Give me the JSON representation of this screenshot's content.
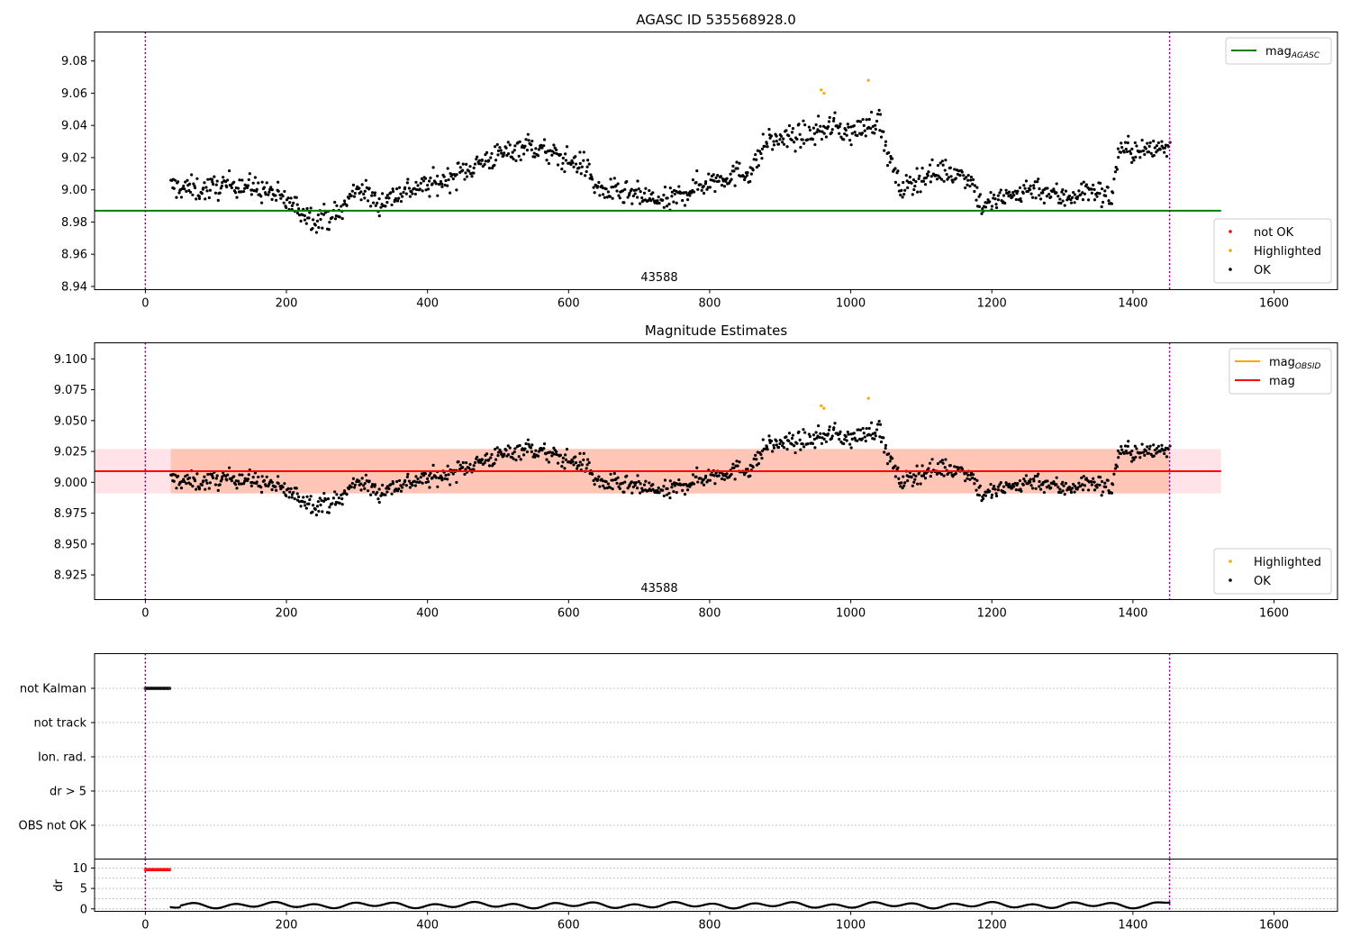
{
  "figure": {
    "background": "#ffffff"
  },
  "chart_data": [
    {
      "name": "panel-agasc",
      "type": "scatter",
      "title": "AGASC ID 535568928.0",
      "annotation": "43588",
      "xlim": [
        -72,
        1690
      ],
      "ylim": [
        8.938,
        9.098
      ],
      "xticks": [
        0,
        200,
        400,
        600,
        800,
        1000,
        1200,
        1400,
        1600
      ],
      "yticks": [
        8.94,
        8.96,
        8.98,
        9.0,
        9.02,
        9.04,
        9.06,
        9.08
      ],
      "vlines": [
        0,
        1452
      ],
      "hlines": [
        {
          "y": 8.987,
          "x0": -72,
          "x1": 1525,
          "color": "#008000",
          "label": "mag_AGASC"
        }
      ],
      "legends": [
        {
          "position": "top-right",
          "entries": [
            {
              "label": "mag",
              "sub": "AGASC",
              "kind": "line",
              "color": "#008000"
            }
          ]
        },
        {
          "position": "bottom-right",
          "entries": [
            {
              "label": "not OK",
              "kind": "dot",
              "color": "#ff0000"
            },
            {
              "label": "Highlighted",
              "kind": "dot",
              "color": "#ffa500"
            },
            {
              "label": "OK",
              "kind": "dot",
              "color": "#000000"
            }
          ]
        }
      ],
      "highlighted": [
        [
          958,
          9.062
        ],
        [
          962,
          9.06
        ],
        [
          1025,
          9.068
        ]
      ],
      "generated_ok_points": 1100
    },
    {
      "name": "panel-magnitude",
      "type": "scatter",
      "title": "Magnitude Estimates",
      "annotation": "43588",
      "xlim": [
        -72,
        1690
      ],
      "ylim": [
        8.905,
        9.113
      ],
      "xticks": [
        0,
        200,
        400,
        600,
        800,
        1000,
        1200,
        1400,
        1600
      ],
      "yticks": [
        8.925,
        8.95,
        8.975,
        9.0,
        9.025,
        9.05,
        9.075,
        9.1
      ],
      "ytick_labels": [
        "8.925",
        "8.950",
        "8.975",
        "9.000",
        "9.025",
        "9.050",
        "9.075",
        "9.100"
      ],
      "vlines": [
        0,
        1452
      ],
      "bands": [
        {
          "y0": 8.991,
          "y1": 9.027,
          "x0": -72,
          "x1": 1525,
          "color": "#ffc0cb",
          "opacity": 0.45
        },
        {
          "y0": 8.991,
          "y1": 9.027,
          "x0": 36,
          "x1": 1452,
          "color": "#ffa07a",
          "opacity": 0.45
        }
      ],
      "hlines": [
        {
          "y": 9.009,
          "x0": -72,
          "x1": 1525,
          "color": "#ff0000",
          "label": "mag"
        }
      ],
      "legends": [
        {
          "position": "top-right",
          "entries": [
            {
              "label": "mag",
              "sub": "OBSID",
              "kind": "line",
              "color": "#ffa500"
            },
            {
              "label": "mag",
              "kind": "line",
              "color": "#ff0000"
            }
          ]
        },
        {
          "position": "bottom-right",
          "entries": [
            {
              "label": "Highlighted",
              "kind": "dot",
              "color": "#ffa500"
            },
            {
              "label": "OK",
              "kind": "dot",
              "color": "#000000"
            }
          ]
        }
      ],
      "highlighted": [
        [
          958,
          9.062
        ],
        [
          962,
          9.06
        ],
        [
          1025,
          9.068
        ]
      ],
      "generated_ok_points": 1100
    },
    {
      "name": "panel-flags",
      "type": "scatter",
      "categories": [
        "not Kalman",
        "not track",
        "Ion. rad.",
        "dr > 5",
        "OBS not OK"
      ],
      "xlim": [
        -72,
        1690
      ],
      "vlines": [
        0,
        1452
      ],
      "flag_segments": [
        {
          "category": "not Kalman",
          "x0": 0,
          "x1": 35
        }
      ]
    },
    {
      "name": "panel-dr",
      "type": "scatter",
      "ylabel": "dr",
      "ylim": [
        -0.6,
        12.2
      ],
      "yticks": [
        0,
        5,
        10
      ],
      "xlim": [
        -72,
        1690
      ],
      "xticks": [
        0,
        200,
        400,
        600,
        800,
        1000,
        1200,
        1400,
        1600
      ],
      "vlines": [
        0,
        1452
      ],
      "not_ok_segment": {
        "x0": 0,
        "x1": 35,
        "y": 9.6,
        "color": "#ff0000"
      }
    }
  ]
}
